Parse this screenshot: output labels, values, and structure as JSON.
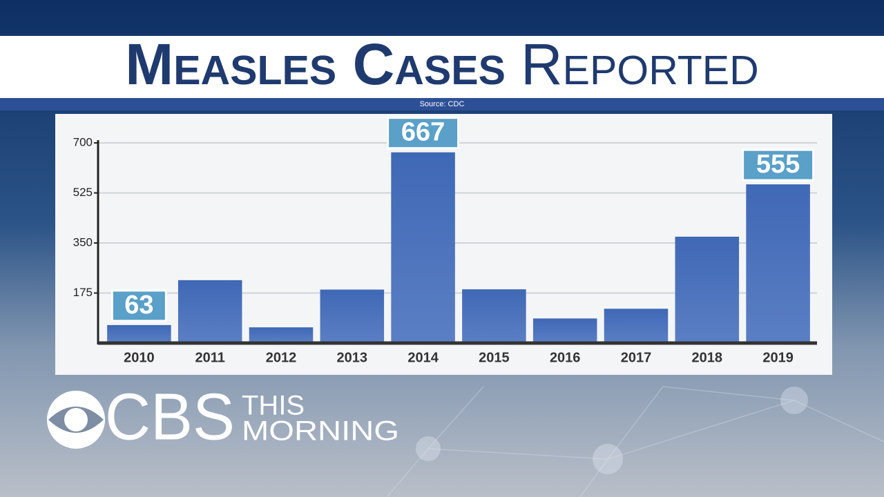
{
  "chart_data": {
    "type": "bar",
    "title_bold": "Measles Cases",
    "title_light": "Reported",
    "source": "Source: CDC",
    "categories": [
      "2010",
      "2011",
      "2012",
      "2013",
      "2014",
      "2015",
      "2016",
      "2017",
      "2018",
      "2019"
    ],
    "values": [
      63,
      220,
      55,
      187,
      667,
      188,
      86,
      120,
      372,
      555
    ],
    "value_labels": [
      "63",
      null,
      null,
      null,
      "667",
      null,
      null,
      null,
      null,
      "555"
    ],
    "color": "#4f74bd",
    "ylim": [
      0,
      700
    ],
    "yticks": [
      175,
      350,
      525,
      700
    ],
    "grid": true
  },
  "logo": {
    "network": "CBS",
    "show_line1": "THIS",
    "show_line2": "MORNING"
  }
}
